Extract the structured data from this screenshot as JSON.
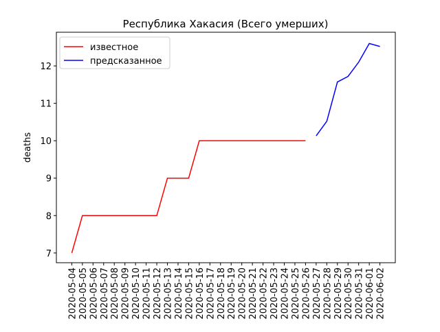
{
  "chart_data": {
    "type": "line",
    "title": "Республика Хакасия (Всего умерших)",
    "y_label": "deaths",
    "categories": [
      "2020-05-04",
      "2020-05-05",
      "2020-05-06",
      "2020-05-07",
      "2020-05-08",
      "2020-05-09",
      "2020-05-10",
      "2020-05-11",
      "2020-05-12",
      "2020-05-13",
      "2020-05-14",
      "2020-05-15",
      "2020-05-16",
      "2020-05-17",
      "2020-05-18",
      "2020-05-19",
      "2020-05-20",
      "2020-05-21",
      "2020-05-22",
      "2020-05-23",
      "2020-05-24",
      "2020-05-25",
      "2020-05-26",
      "2020-05-27",
      "2020-05-28",
      "2020-05-29",
      "2020-05-30",
      "2020-05-31",
      "2020-06-01",
      "2020-06-02"
    ],
    "series": [
      {
        "name": "известное",
        "color": "#ff0000",
        "values": [
          7,
          8,
          8,
          8,
          8,
          8,
          8,
          8,
          8,
          9,
          9,
          9,
          10,
          10,
          10,
          10,
          10,
          10,
          10,
          10,
          10,
          10,
          10,
          null,
          null,
          null,
          null,
          null,
          null,
          null
        ]
      },
      {
        "name": "предсказанное",
        "color": "#0000ff",
        "values": [
          null,
          null,
          null,
          null,
          null,
          null,
          null,
          null,
          null,
          null,
          null,
          null,
          null,
          null,
          null,
          null,
          null,
          null,
          null,
          null,
          null,
          null,
          null,
          10.13,
          10.52,
          11.57,
          11.72,
          12.1,
          12.6,
          12.52
        ]
      }
    ],
    "ylim": [
      6.74,
      12.9
    ],
    "yticks": [
      7,
      8,
      9,
      10,
      11,
      12
    ],
    "legend": "upper-left"
  }
}
